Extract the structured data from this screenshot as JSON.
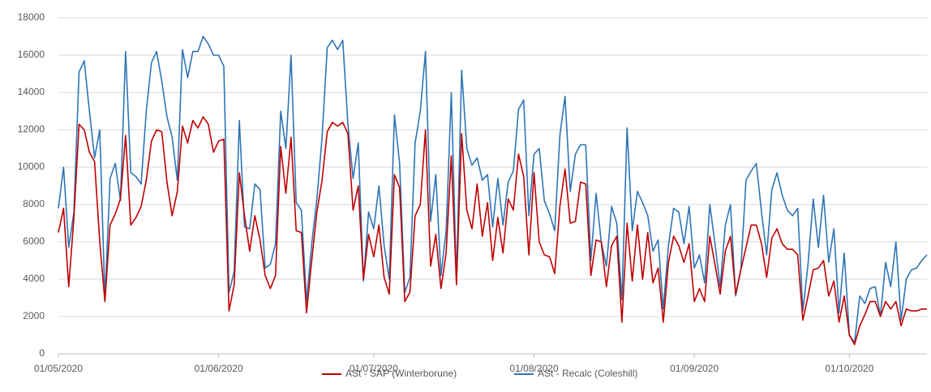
{
  "chart_data": {
    "type": "line",
    "x": [
      "01/05/2020",
      "02/05/2020",
      "03/05/2020",
      "04/05/2020",
      "05/05/2020",
      "06/05/2020",
      "07/05/2020",
      "08/05/2020",
      "09/05/2020",
      "10/05/2020",
      "11/05/2020",
      "12/05/2020",
      "13/05/2020",
      "14/05/2020",
      "15/05/2020",
      "16/05/2020",
      "17/05/2020",
      "18/05/2020",
      "19/05/2020",
      "20/05/2020",
      "21/05/2020",
      "22/05/2020",
      "23/05/2020",
      "24/05/2020",
      "25/05/2020",
      "26/05/2020",
      "27/05/2020",
      "28/05/2020",
      "29/05/2020",
      "30/05/2020",
      "31/05/2020",
      "01/06/2020",
      "02/06/2020",
      "03/06/2020",
      "04/06/2020",
      "05/06/2020",
      "06/06/2020",
      "07/06/2020",
      "08/06/2020",
      "09/06/2020",
      "10/06/2020",
      "11/06/2020",
      "12/06/2020",
      "13/06/2020",
      "14/06/2020",
      "15/06/2020",
      "16/06/2020",
      "17/06/2020",
      "18/06/2020",
      "19/06/2020",
      "20/06/2020",
      "21/06/2020",
      "22/06/2020",
      "23/06/2020",
      "24/06/2020",
      "25/06/2020",
      "26/06/2020",
      "27/06/2020",
      "28/06/2020",
      "29/06/2020",
      "30/06/2020",
      "01/07/2020",
      "02/07/2020",
      "03/07/2020",
      "04/07/2020",
      "05/07/2020",
      "06/07/2020",
      "07/07/2020",
      "08/07/2020",
      "09/07/2020",
      "10/07/2020",
      "11/07/2020",
      "12/07/2020",
      "13/07/2020",
      "14/07/2020",
      "15/07/2020",
      "16/07/2020",
      "17/07/2020",
      "18/07/2020",
      "19/07/2020",
      "20/07/2020",
      "21/07/2020",
      "22/07/2020",
      "23/07/2020",
      "24/07/2020",
      "25/07/2020",
      "26/07/2020",
      "27/07/2020",
      "28/07/2020",
      "29/07/2020",
      "30/07/2020",
      "31/07/2020",
      "01/08/2020",
      "02/08/2020",
      "03/08/2020",
      "04/08/2020",
      "05/08/2020",
      "06/08/2020",
      "07/08/2020",
      "08/08/2020",
      "09/08/2020",
      "10/08/2020",
      "11/08/2020",
      "12/08/2020",
      "13/08/2020",
      "14/08/2020",
      "15/08/2020",
      "16/08/2020",
      "17/08/2020",
      "18/08/2020",
      "19/08/2020",
      "20/08/2020",
      "21/08/2020",
      "22/08/2020",
      "23/08/2020",
      "24/08/2020",
      "25/08/2020",
      "26/08/2020",
      "27/08/2020",
      "28/08/2020",
      "29/08/2020",
      "30/08/2020",
      "31/08/2020",
      "01/09/2020",
      "02/09/2020",
      "03/09/2020",
      "04/09/2020",
      "05/09/2020",
      "06/09/2020",
      "07/09/2020",
      "08/09/2020",
      "09/09/2020",
      "10/09/2020",
      "11/09/2020",
      "12/09/2020",
      "13/09/2020",
      "14/09/2020",
      "15/09/2020",
      "16/09/2020",
      "17/09/2020",
      "18/09/2020",
      "19/09/2020",
      "20/09/2020",
      "21/09/2020",
      "22/09/2020",
      "23/09/2020",
      "24/09/2020",
      "25/09/2020",
      "26/09/2020",
      "27/09/2020",
      "28/09/2020",
      "29/09/2020",
      "30/09/2020",
      "01/10/2020",
      "02/10/2020",
      "03/10/2020",
      "04/10/2020",
      "05/10/2020",
      "06/10/2020",
      "07/10/2020",
      "08/10/2020",
      "09/10/2020",
      "10/10/2020",
      "11/10/2020",
      "12/10/2020",
      "13/10/2020",
      "14/10/2020",
      "15/10/2020",
      "16/10/2020"
    ],
    "series": [
      {
        "name": "ASt - SAP (Winterborune)",
        "color": "#c00000",
        "values": [
          6500,
          7800,
          3600,
          7300,
          12300,
          12000,
          10800,
          10300,
          6000,
          2800,
          6900,
          7500,
          8300,
          11700,
          6900,
          7300,
          7900,
          9300,
          11400,
          12000,
          11900,
          9200,
          7400,
          8700,
          12200,
          11300,
          12500,
          12100,
          12700,
          12300,
          10800,
          11400,
          11500,
          2300,
          3700,
          9700,
          7400,
          5500,
          7400,
          6100,
          4200,
          3500,
          4200,
          11100,
          8600,
          11600,
          6600,
          6500,
          2200,
          5000,
          7600,
          9300,
          11900,
          12400,
          12200,
          12400,
          11800,
          7700,
          9000,
          4000,
          6400,
          5200,
          6900,
          4100,
          3200,
          9600,
          8900,
          2800,
          3300,
          7400,
          8000,
          12000,
          4700,
          6400,
          3500,
          5400,
          10600,
          3700,
          11800,
          7700,
          6700,
          9100,
          6300,
          8100,
          5000,
          7300,
          5400,
          8300,
          7700,
          10700,
          9500,
          5300,
          9700,
          6000,
          5300,
          5200,
          4300,
          7900,
          9900,
          7000,
          7100,
          9200,
          9100,
          4200,
          6100,
          6000,
          3600,
          5800,
          6300,
          1700,
          7000,
          3900,
          6900,
          4000,
          6500,
          3800,
          4600,
          1700,
          4900,
          6300,
          5800,
          4900,
          5900,
          2800,
          3500,
          2800,
          6300,
          4800,
          3200,
          5500,
          6300,
          3200,
          4500,
          5700,
          6900,
          6900,
          5900,
          4100,
          6200,
          6700,
          5900,
          5600,
          5600,
          5300,
          1800,
          3100,
          4500,
          4600,
          5000,
          3100,
          3900,
          1700,
          3100,
          1000,
          500,
          1500,
          2100,
          2800,
          2800,
          2000,
          2800,
          2400,
          2800,
          1500,
          2400,
          2300,
          2300,
          2400,
          2400
        ]
      },
      {
        "name": "ASt - Recalc (Coleshill)",
        "color": "#2e75b6",
        "values": [
          7800,
          10000,
          5700,
          7600,
          15100,
          15700,
          13000,
          10500,
          12000,
          2900,
          9400,
          10200,
          8200,
          16200,
          9700,
          9500,
          9100,
          13000,
          15600,
          16200,
          14600,
          12700,
          11600,
          9300,
          16300,
          14800,
          16200,
          16200,
          17000,
          16600,
          16000,
          16000,
          15400,
          3300,
          4400,
          12500,
          6800,
          6700,
          9100,
          8800,
          4600,
          4800,
          5900,
          13000,
          11000,
          16000,
          8100,
          7700,
          2800,
          5900,
          8300,
          11600,
          16400,
          16800,
          16300,
          16800,
          12300,
          9400,
          11300,
          3900,
          7600,
          6700,
          9000,
          5800,
          4000,
          12800,
          10200,
          3300,
          4100,
          11300,
          13000,
          16200,
          7100,
          9600,
          4200,
          6600,
          14000,
          3900,
          15200,
          11000,
          10100,
          10500,
          9300,
          9600,
          6800,
          9400,
          6900,
          9200,
          9800,
          13100,
          13600,
          7400,
          10700,
          11000,
          8200,
          7500,
          6600,
          11700,
          13800,
          8700,
          10700,
          11200,
          11200,
          5000,
          8600,
          6000,
          4700,
          7900,
          7000,
          2900,
          12100,
          6600,
          8700,
          8100,
          7400,
          5500,
          6100,
          2400,
          5800,
          7800,
          7600,
          5900,
          7900,
          4600,
          5300,
          3800,
          8000,
          5900,
          3600,
          6900,
          8000,
          3100,
          4500,
          9300,
          9800,
          10200,
          7600,
          5300,
          8800,
          9700,
          8500,
          7700,
          7400,
          7800,
          2300,
          4800,
          8300,
          5700,
          8500,
          4900,
          6700,
          2200,
          5400,
          1000,
          600,
          3100,
          2700,
          3500,
          3600,
          2000,
          4900,
          3600,
          6000,
          1800,
          4000,
          4500,
          4600,
          5000,
          5300
        ]
      }
    ],
    "xlim": [
      "01/05/2020",
      "16/10/2020"
    ],
    "xticks": [
      "01/05/2020",
      "01/06/2020",
      "01/07/2020",
      "01/08/2020",
      "01/09/2020",
      "01/10/2020"
    ],
    "ylim": [
      0,
      18000
    ],
    "yticks": [
      0,
      2000,
      4000,
      6000,
      8000,
      10000,
      12000,
      14000,
      16000,
      18000
    ],
    "grid": true,
    "legend": "bottom"
  }
}
